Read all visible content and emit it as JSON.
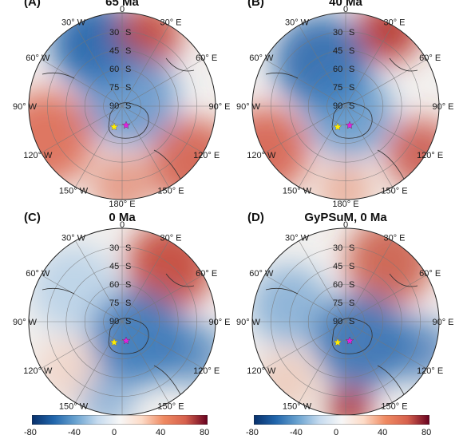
{
  "panels": [
    {
      "letter": "(A)",
      "title": "65 Ma",
      "variant": "a"
    },
    {
      "letter": "(B)",
      "title": "40 Ma",
      "variant": "b"
    },
    {
      "letter": "(C)",
      "title": "0 Ma",
      "variant": "c"
    },
    {
      "letter": "(D)",
      "title": "GyPSuM, 0 Ma",
      "variant": "d"
    }
  ],
  "map_labels": {
    "lat": [
      "30",
      "45",
      "60",
      "75",
      "90"
    ],
    "lat_hemisphere": "S",
    "lon": [
      {
        "deg": "0",
        "dir": ""
      },
      {
        "deg": "30",
        "dir": "E"
      },
      {
        "deg": "60",
        "dir": "E"
      },
      {
        "deg": "90",
        "dir": "E"
      },
      {
        "deg": "120",
        "dir": "E"
      },
      {
        "deg": "150",
        "dir": "E"
      },
      {
        "deg": "180",
        "dir": "E"
      },
      {
        "deg": "150",
        "dir": "W"
      },
      {
        "deg": "120",
        "dir": "W"
      },
      {
        "deg": "90",
        "dir": "W"
      },
      {
        "deg": "60",
        "dir": "W"
      },
      {
        "deg": "30",
        "dir": "W"
      }
    ]
  },
  "markers": [
    {
      "name": "yellow-star",
      "color": "#ffee00"
    },
    {
      "name": "magenta-star",
      "color": "#e020e0"
    }
  ],
  "colorbar": {
    "ticks": [
      "-80",
      "-40",
      "0",
      "40",
      "80"
    ],
    "min": -80,
    "max": 80,
    "colors": [
      "#08306b",
      "#2166ac",
      "#6aa3d0",
      "#c6dbef",
      "#f7f7f7",
      "#fddbc7",
      "#ef8a62",
      "#d6604d",
      "#67001f"
    ]
  },
  "colors": {
    "blue": "#2c6fb5",
    "red": "#c8402f",
    "neutral": "#f2f0ee"
  }
}
